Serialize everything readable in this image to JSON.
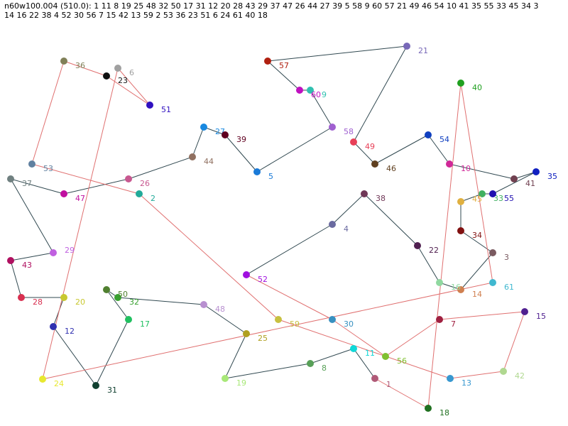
{
  "header": {
    "line1": "n60w100.004 (510.0): 1 11 8 19 25 48 32 50 17 31 12 20 28 43 29 37 47 26 44 27 39 5 58 9 60 57 21 49 46 54 10 41 35 55 33 45 34 3",
    "line2": "14 16 22 38 4 52 30 56 7 15 42 13 59 2 53 36 23 51 6 24 61 40 18"
  },
  "nodes": [
    {
      "id": "1",
      "color": "#b05a78"
    },
    {
      "id": "2",
      "color": "#22aa99"
    },
    {
      "id": "3",
      "color": "#7a5a60"
    },
    {
      "id": "4",
      "color": "#6a6aa0"
    },
    {
      "id": "5",
      "color": "#1a7ad8"
    },
    {
      "id": "6",
      "color": "#a0a0a0"
    },
    {
      "id": "7",
      "color": "#a02040"
    },
    {
      "id": "8",
      "color": "#58a058"
    },
    {
      "id": "9",
      "color": "#30c0b0"
    },
    {
      "id": "10",
      "color": "#d02898"
    },
    {
      "id": "11",
      "color": "#10d8d8"
    },
    {
      "id": "12",
      "color": "#3030b0"
    },
    {
      "id": "13",
      "color": "#3898d0"
    },
    {
      "id": "14",
      "color": "#d08050"
    },
    {
      "id": "15",
      "color": "#502090"
    },
    {
      "id": "16",
      "color": "#90d8a0"
    },
    {
      "id": "17",
      "color": "#20c060"
    },
    {
      "id": "18",
      "color": "#207020"
    },
    {
      "id": "19",
      "color": "#a8e878"
    },
    {
      "id": "20",
      "color": "#c8c830"
    },
    {
      "id": "21",
      "color": "#7868b8"
    },
    {
      "id": "22",
      "color": "#502050"
    },
    {
      "id": "23",
      "color": "#101010"
    },
    {
      "id": "24",
      "color": "#e8e830"
    },
    {
      "id": "25",
      "color": "#b0a020"
    },
    {
      "id": "26",
      "color": "#c85890"
    },
    {
      "id": "27",
      "color": "#1888e0"
    },
    {
      "id": "28",
      "color": "#d83050"
    },
    {
      "id": "29",
      "color": "#c060e0"
    },
    {
      "id": "30",
      "color": "#3890c0"
    },
    {
      "id": "31",
      "color": "#104030"
    },
    {
      "id": "32",
      "color": "#38a030"
    },
    {
      "id": "33",
      "color": "#40b060"
    },
    {
      "id": "34",
      "color": "#801010"
    },
    {
      "id": "35",
      "color": "#1020c0"
    },
    {
      "id": "36",
      "color": "#808058"
    },
    {
      "id": "37",
      "color": "#708080"
    },
    {
      "id": "38",
      "color": "#703858"
    },
    {
      "id": "39",
      "color": "#600020"
    },
    {
      "id": "40",
      "color": "#20a020"
    },
    {
      "id": "41",
      "color": "#704050"
    },
    {
      "id": "42",
      "color": "#b0d890"
    },
    {
      "id": "43",
      "color": "#b01060"
    },
    {
      "id": "44",
      "color": "#907060"
    },
    {
      "id": "45",
      "color": "#e0b040"
    },
    {
      "id": "46",
      "color": "#604020"
    },
    {
      "id": "47",
      "color": "#c010a0"
    },
    {
      "id": "48",
      "color": "#b890d0"
    },
    {
      "id": "49",
      "color": "#e84058"
    },
    {
      "id": "50",
      "color": "#508030"
    },
    {
      "id": "51",
      "color": "#3010c0"
    },
    {
      "id": "52",
      "color": "#a010e0"
    },
    {
      "id": "53",
      "color": "#6080a0"
    },
    {
      "id": "54",
      "color": "#1040c0"
    },
    {
      "id": "55",
      "color": "#2010b0"
    },
    {
      "id": "56",
      "color": "#80c030"
    },
    {
      "id": "57",
      "color": "#b02010"
    },
    {
      "id": "58",
      "color": "#a060d0"
    },
    {
      "id": "59",
      "color": "#c8c040"
    },
    {
      "id": "60",
      "color": "#c010c0"
    },
    {
      "id": "61",
      "color": "#40b8d0"
    }
  ],
  "edge_colors": {
    "dark": "#304850",
    "red": "#e07070"
  }
}
